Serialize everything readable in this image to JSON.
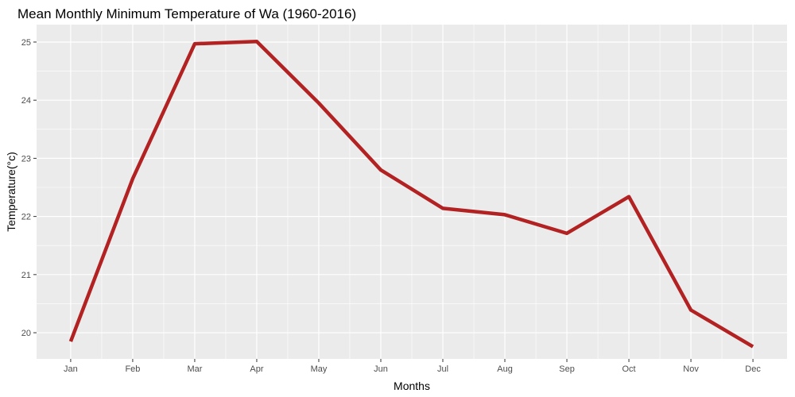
{
  "chart_data": {
    "type": "line",
    "title": "Mean Monthly Minimum Temperature  of Wa (1960-2016)",
    "xlabel": "Months",
    "ylabel": "Temperature(°c)",
    "categories": [
      "Jan",
      "Feb",
      "Mar",
      "Apr",
      "May",
      "Jun",
      "Jul",
      "Aug",
      "Sep",
      "Oct",
      "Nov",
      "Dec"
    ],
    "series": [
      {
        "values": [
          19.85,
          22.65,
          24.97,
          25.01,
          23.95,
          22.8,
          22.14,
          22.03,
          21.71,
          22.34,
          20.39,
          19.76
        ],
        "color": "#b22222"
      }
    ],
    "ylim": [
      19.55,
      25.3
    ],
    "yticks": [
      20,
      21,
      22,
      23,
      24,
      25
    ],
    "grid": true,
    "legend": "none",
    "panel_background": "#ebebeb",
    "grid_color": "#ffffff"
  }
}
